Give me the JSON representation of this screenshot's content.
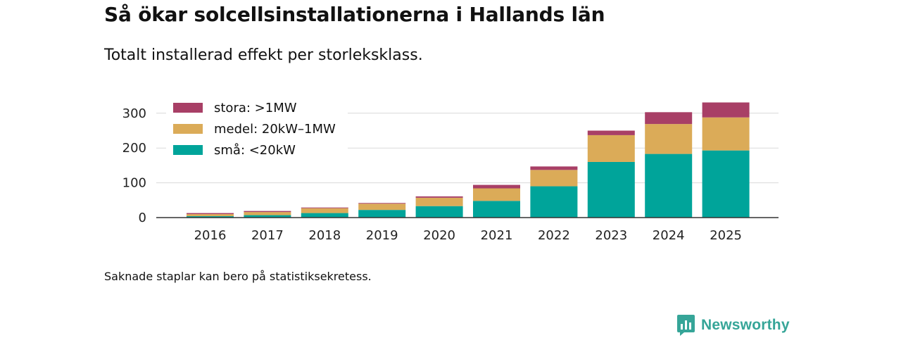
{
  "header": {
    "title": "Så ökar solcellsinstallationerna i Hallands län",
    "subtitle": "Totalt installerad effekt per storleksklass."
  },
  "footer": {
    "note": "Saknade staplar kan bero på statistiksekretess.",
    "brand": "Newsworthy",
    "brand_color": "#36a598"
  },
  "chart_data": {
    "type": "bar",
    "stacked": true,
    "title": "Så ökar solcellsinstallationerna i Hallands län",
    "subtitle": "Totalt installerad effekt per storleksklass.",
    "xlabel": "",
    "ylabel": "",
    "ylim": [
      0,
      330
    ],
    "yticks": [
      0,
      100,
      200,
      300
    ],
    "grid": true,
    "legend_position": "top-left",
    "categories": [
      "2016",
      "2017",
      "2018",
      "2019",
      "2020",
      "2021",
      "2022",
      "2023",
      "2024",
      "2025"
    ],
    "series": [
      {
        "name": "små: <20kW",
        "color": "#00a49a",
        "values": [
          4,
          7,
          13,
          22,
          33,
          48,
          90,
          160,
          183,
          193
        ]
      },
      {
        "name": "medel: 20kW–1MW",
        "color": "#dbab58",
        "values": [
          6,
          9,
          14,
          18,
          24,
          36,
          47,
          77,
          86,
          95
        ]
      },
      {
        "name": "stora: >1MW",
        "color": "#a83f66",
        "values": [
          3,
          3,
          2,
          2,
          4,
          10,
          10,
          13,
          34,
          43
        ]
      }
    ],
    "legend_order": [
      2,
      1,
      0
    ]
  }
}
